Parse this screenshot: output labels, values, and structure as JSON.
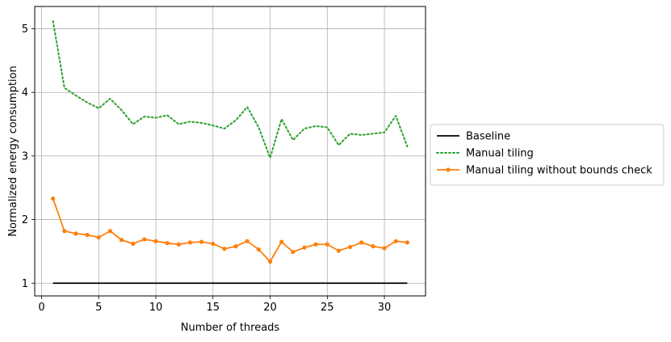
{
  "chart_data": {
    "type": "line",
    "title": "",
    "xlabel": "Number of threads",
    "ylabel": "Normalized energy consumption",
    "xlim": [
      -0.6,
      33.6
    ],
    "ylim": [
      0.8,
      5.35
    ],
    "xticks": [
      0,
      5,
      10,
      15,
      20,
      25,
      30
    ],
    "yticks": [
      1,
      2,
      3,
      4,
      5
    ],
    "grid": true,
    "legend_position": "outside-right",
    "x": [
      1,
      2,
      3,
      4,
      5,
      6,
      7,
      8,
      9,
      10,
      11,
      12,
      13,
      14,
      15,
      16,
      17,
      18,
      19,
      20,
      21,
      22,
      23,
      24,
      25,
      26,
      27,
      28,
      29,
      30,
      31,
      32
    ],
    "series": [
      {
        "name": "Baseline",
        "color": "#000000",
        "style": "solid",
        "marker": "none",
        "values": [
          1,
          1,
          1,
          1,
          1,
          1,
          1,
          1,
          1,
          1,
          1,
          1,
          1,
          1,
          1,
          1,
          1,
          1,
          1,
          1,
          1,
          1,
          1,
          1,
          1,
          1,
          1,
          1,
          1,
          1,
          1,
          1
        ]
      },
      {
        "name": "Manual tiling",
        "color": "#2ca02c",
        "style": "dotted",
        "marker": "none",
        "values": [
          5.12,
          4.07,
          3.95,
          3.84,
          3.75,
          3.9,
          3.72,
          3.5,
          3.62,
          3.6,
          3.64,
          3.5,
          3.54,
          3.52,
          3.48,
          3.43,
          3.56,
          3.77,
          3.45,
          2.97,
          3.58,
          3.25,
          3.43,
          3.47,
          3.45,
          3.17,
          3.35,
          3.33,
          3.35,
          3.37,
          3.63,
          3.15
        ]
      },
      {
        "name": "Manual tiling without bounds check",
        "color": "#ff7f0e",
        "style": "solid",
        "marker": "circle",
        "values": [
          2.33,
          1.82,
          1.78,
          1.76,
          1.72,
          1.82,
          1.68,
          1.62,
          1.69,
          1.66,
          1.63,
          1.61,
          1.64,
          1.65,
          1.62,
          1.54,
          1.58,
          1.66,
          1.53,
          1.34,
          1.65,
          1.49,
          1.56,
          1.61,
          1.61,
          1.51,
          1.57,
          1.64,
          1.58,
          1.55,
          1.66,
          1.64
        ]
      }
    ]
  }
}
